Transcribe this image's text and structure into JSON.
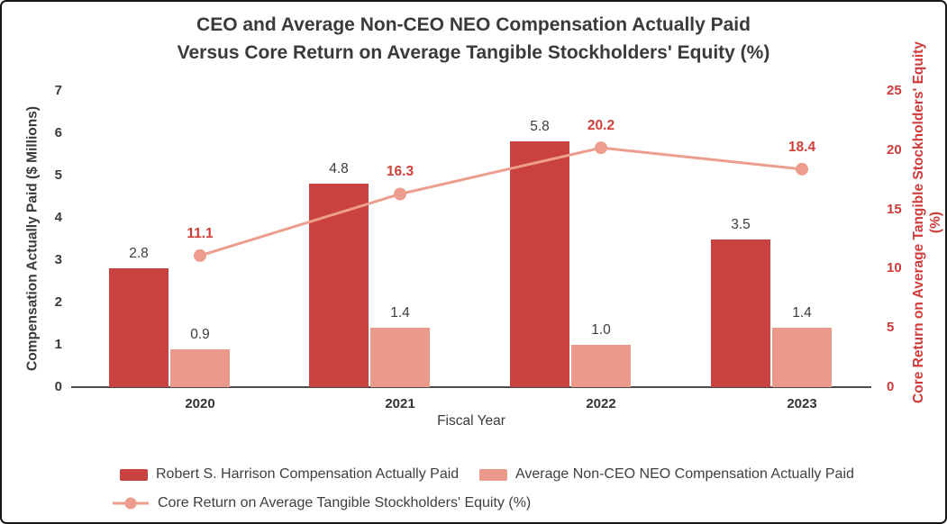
{
  "chart_data": {
    "type": "combo-bar-line",
    "title_line1": "CEO and Average Non-CEO NEO Compensation Actually Paid",
    "title_line2": "Versus Core Return on Average Tangible Stockholders' Equity (%)",
    "categories": [
      "2020",
      "2021",
      "2022",
      "2023"
    ],
    "xlabel": "Fiscal Year",
    "left_axis": {
      "label": "Compensation Actually Paid ($ Millions)",
      "ticks": [
        0,
        1,
        2,
        3,
        4,
        5,
        6,
        7
      ],
      "min": 0,
      "max": 7
    },
    "right_axis": {
      "label_main": "Core Return on Average Tangible Stockholders' Equity",
      "label_sub": "(%)",
      "ticks": [
        0,
        5,
        10,
        15,
        20,
        25
      ],
      "min": 0,
      "max": 25
    },
    "series": [
      {
        "key": "ceo",
        "name": "Robert S. Harrison Compensation Actually Paid",
        "type": "bar",
        "axis": "left",
        "color": "#c94140",
        "values": [
          2.8,
          4.8,
          5.8,
          3.5
        ]
      },
      {
        "key": "non_ceo",
        "name": "Average Non-CEO NEO Compensation Actually Paid",
        "type": "bar",
        "axis": "left",
        "color": "#e99a8b",
        "values": [
          0.9,
          1.4,
          1.0,
          1.4
        ]
      },
      {
        "key": "core_return",
        "name": "Core Return on Average Tangible Stockholders' Equity (%)",
        "type": "line",
        "axis": "right",
        "color": "#ed9d8d",
        "label_color": "#d04038",
        "values": [
          11.1,
          16.3,
          20.2,
          18.4
        ]
      }
    ],
    "colors": {
      "axis_red": "#cf3a3a",
      "text_dark": "#3a3a3a",
      "axis_line": "#4c4c4c"
    },
    "legend_position": "bottom-left",
    "grid": false
  }
}
